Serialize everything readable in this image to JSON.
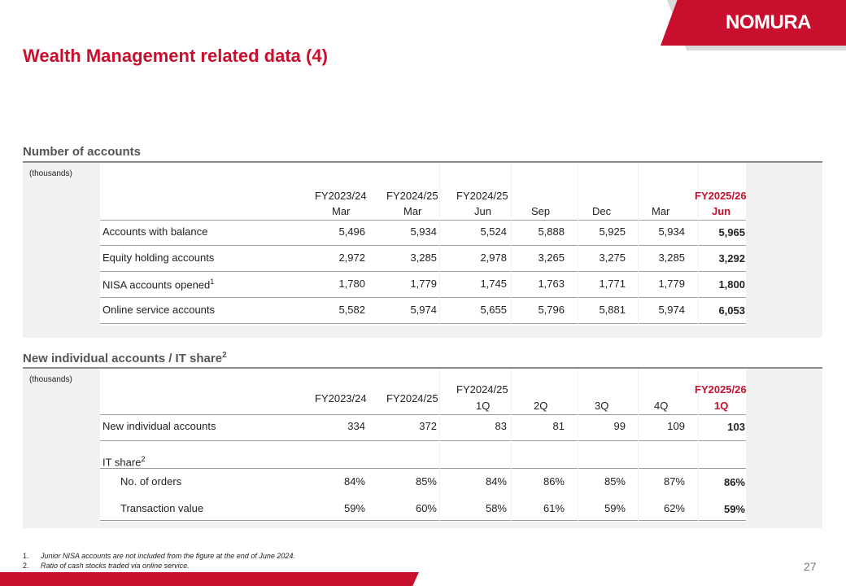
{
  "brand": {
    "logo": "NOMURA",
    "red": "#c8102e",
    "grey": "#d9d9d9"
  },
  "title": "Wealth Management related data (4)",
  "accounts": {
    "section_title": "Number of accounts",
    "unit": "(thousands)",
    "col_fy": [
      "FY2023/24",
      "FY2024/25",
      "FY2024/25",
      "",
      "",
      "",
      "FY2025/26"
    ],
    "col_sub": [
      "Mar",
      "Mar",
      "Jun",
      "Sep",
      "Dec",
      "Mar",
      "Jun"
    ],
    "rows": [
      {
        "label": "Accounts with balance",
        "sup": "",
        "values": [
          "5,496",
          "5,934",
          "5,524",
          "5,888",
          "5,925",
          "5,934",
          "5,965"
        ]
      },
      {
        "label": "Equity holding accounts",
        "sup": "",
        "values": [
          "2,972",
          "3,285",
          "2,978",
          "3,265",
          "3,275",
          "3,285",
          "3,292"
        ]
      },
      {
        "label": "NISA accounts opened",
        "sup": "1",
        "values": [
          "1,780",
          "1,779",
          "1,745",
          "1,763",
          "1,771",
          "1,779",
          "1,800"
        ]
      },
      {
        "label": "Online service accounts",
        "sup": "",
        "values": [
          "5,582",
          "5,974",
          "5,655",
          "5,796",
          "5,881",
          "5,974",
          "6,053"
        ]
      }
    ]
  },
  "it_share": {
    "section_title": "New individual accounts / IT share",
    "section_sup": "2",
    "unit": "(thousands)",
    "col_fy": [
      "FY2023/24",
      "FY2024/25",
      "FY2024/25",
      "",
      "",
      "",
      "FY2025/26"
    ],
    "col_sub": [
      "",
      "",
      "1Q",
      "2Q",
      "3Q",
      "4Q",
      "1Q"
    ],
    "rows": [
      {
        "label": "New individual accounts",
        "sup": "",
        "indent": false,
        "values": [
          "334",
          "372",
          "83",
          "81",
          "99",
          "109",
          "103"
        ]
      },
      {
        "label": "IT share",
        "sup": "2",
        "indent": false,
        "values": [
          "",
          "",
          "",
          "",
          "",
          "",
          ""
        ]
      },
      {
        "label": "No. of orders",
        "sup": "",
        "indent": true,
        "values": [
          "84%",
          "85%",
          "84%",
          "86%",
          "85%",
          "87%",
          "86%"
        ]
      },
      {
        "label": "Transaction value",
        "sup": "",
        "indent": true,
        "values": [
          "59%",
          "60%",
          "58%",
          "61%",
          "59%",
          "62%",
          "59%"
        ]
      }
    ]
  },
  "footnotes": [
    {
      "num": "1.",
      "text": "Junior NISA accounts are not included from the figure at the end of June 2024."
    },
    {
      "num": "2.",
      "text": "Ratio of cash stocks traded via online service."
    }
  ],
  "page_number": "27"
}
